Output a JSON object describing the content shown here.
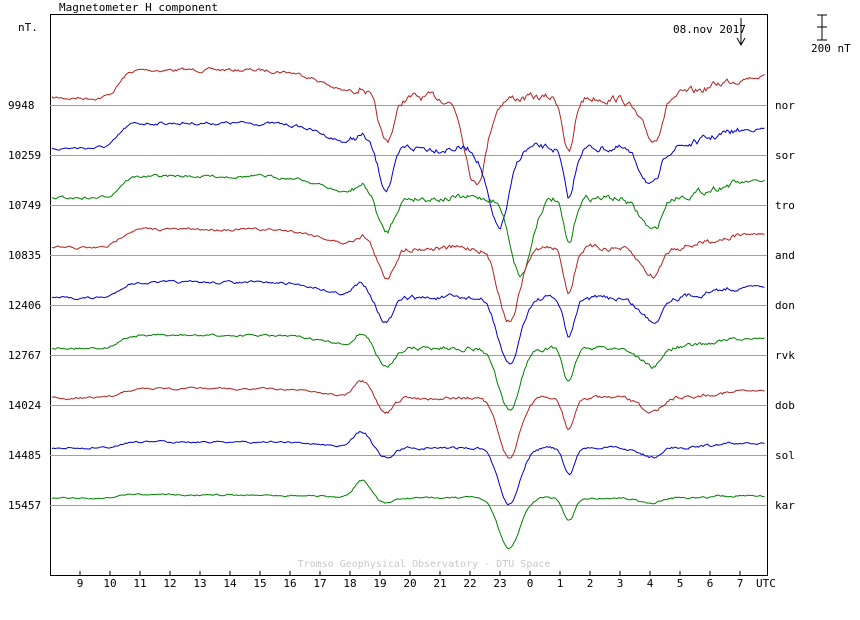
{
  "chart_data": {
    "type": "line",
    "title": "Magnetometer H component",
    "ylabel": "nT.",
    "xlabel": "UTC",
    "date_label": "08.nov 2017",
    "scale_bar_label": "200 nT",
    "credit": "Tromso Geophysical Observatory - DTU Space",
    "x_ticks": [
      "9",
      "10",
      "11",
      "12",
      "13",
      "14",
      "15",
      "16",
      "17",
      "18",
      "19",
      "20",
      "21",
      "22",
      "23",
      "0",
      "1",
      "2",
      "3",
      "4",
      "5",
      "6",
      "7"
    ],
    "grid": true,
    "series": [
      {
        "name": "nor",
        "baseline": 9948,
        "color": "#b22222"
      },
      {
        "name": "sor",
        "baseline": 10259,
        "color": "#0000cc"
      },
      {
        "name": "tro",
        "baseline": 10749,
        "color": "#008000"
      },
      {
        "name": "and",
        "baseline": 10835,
        "color": "#b22222"
      },
      {
        "name": "don",
        "baseline": 12406,
        "color": "#0000cc"
      },
      {
        "name": "rvk",
        "baseline": 12767,
        "color": "#008000"
      },
      {
        "name": "dob",
        "baseline": 14024,
        "color": "#b22222"
      },
      {
        "name": "sol",
        "baseline": 14485,
        "color": "#0000cc"
      },
      {
        "name": "kar",
        "baseline": 15457,
        "color": "#008000"
      }
    ]
  }
}
